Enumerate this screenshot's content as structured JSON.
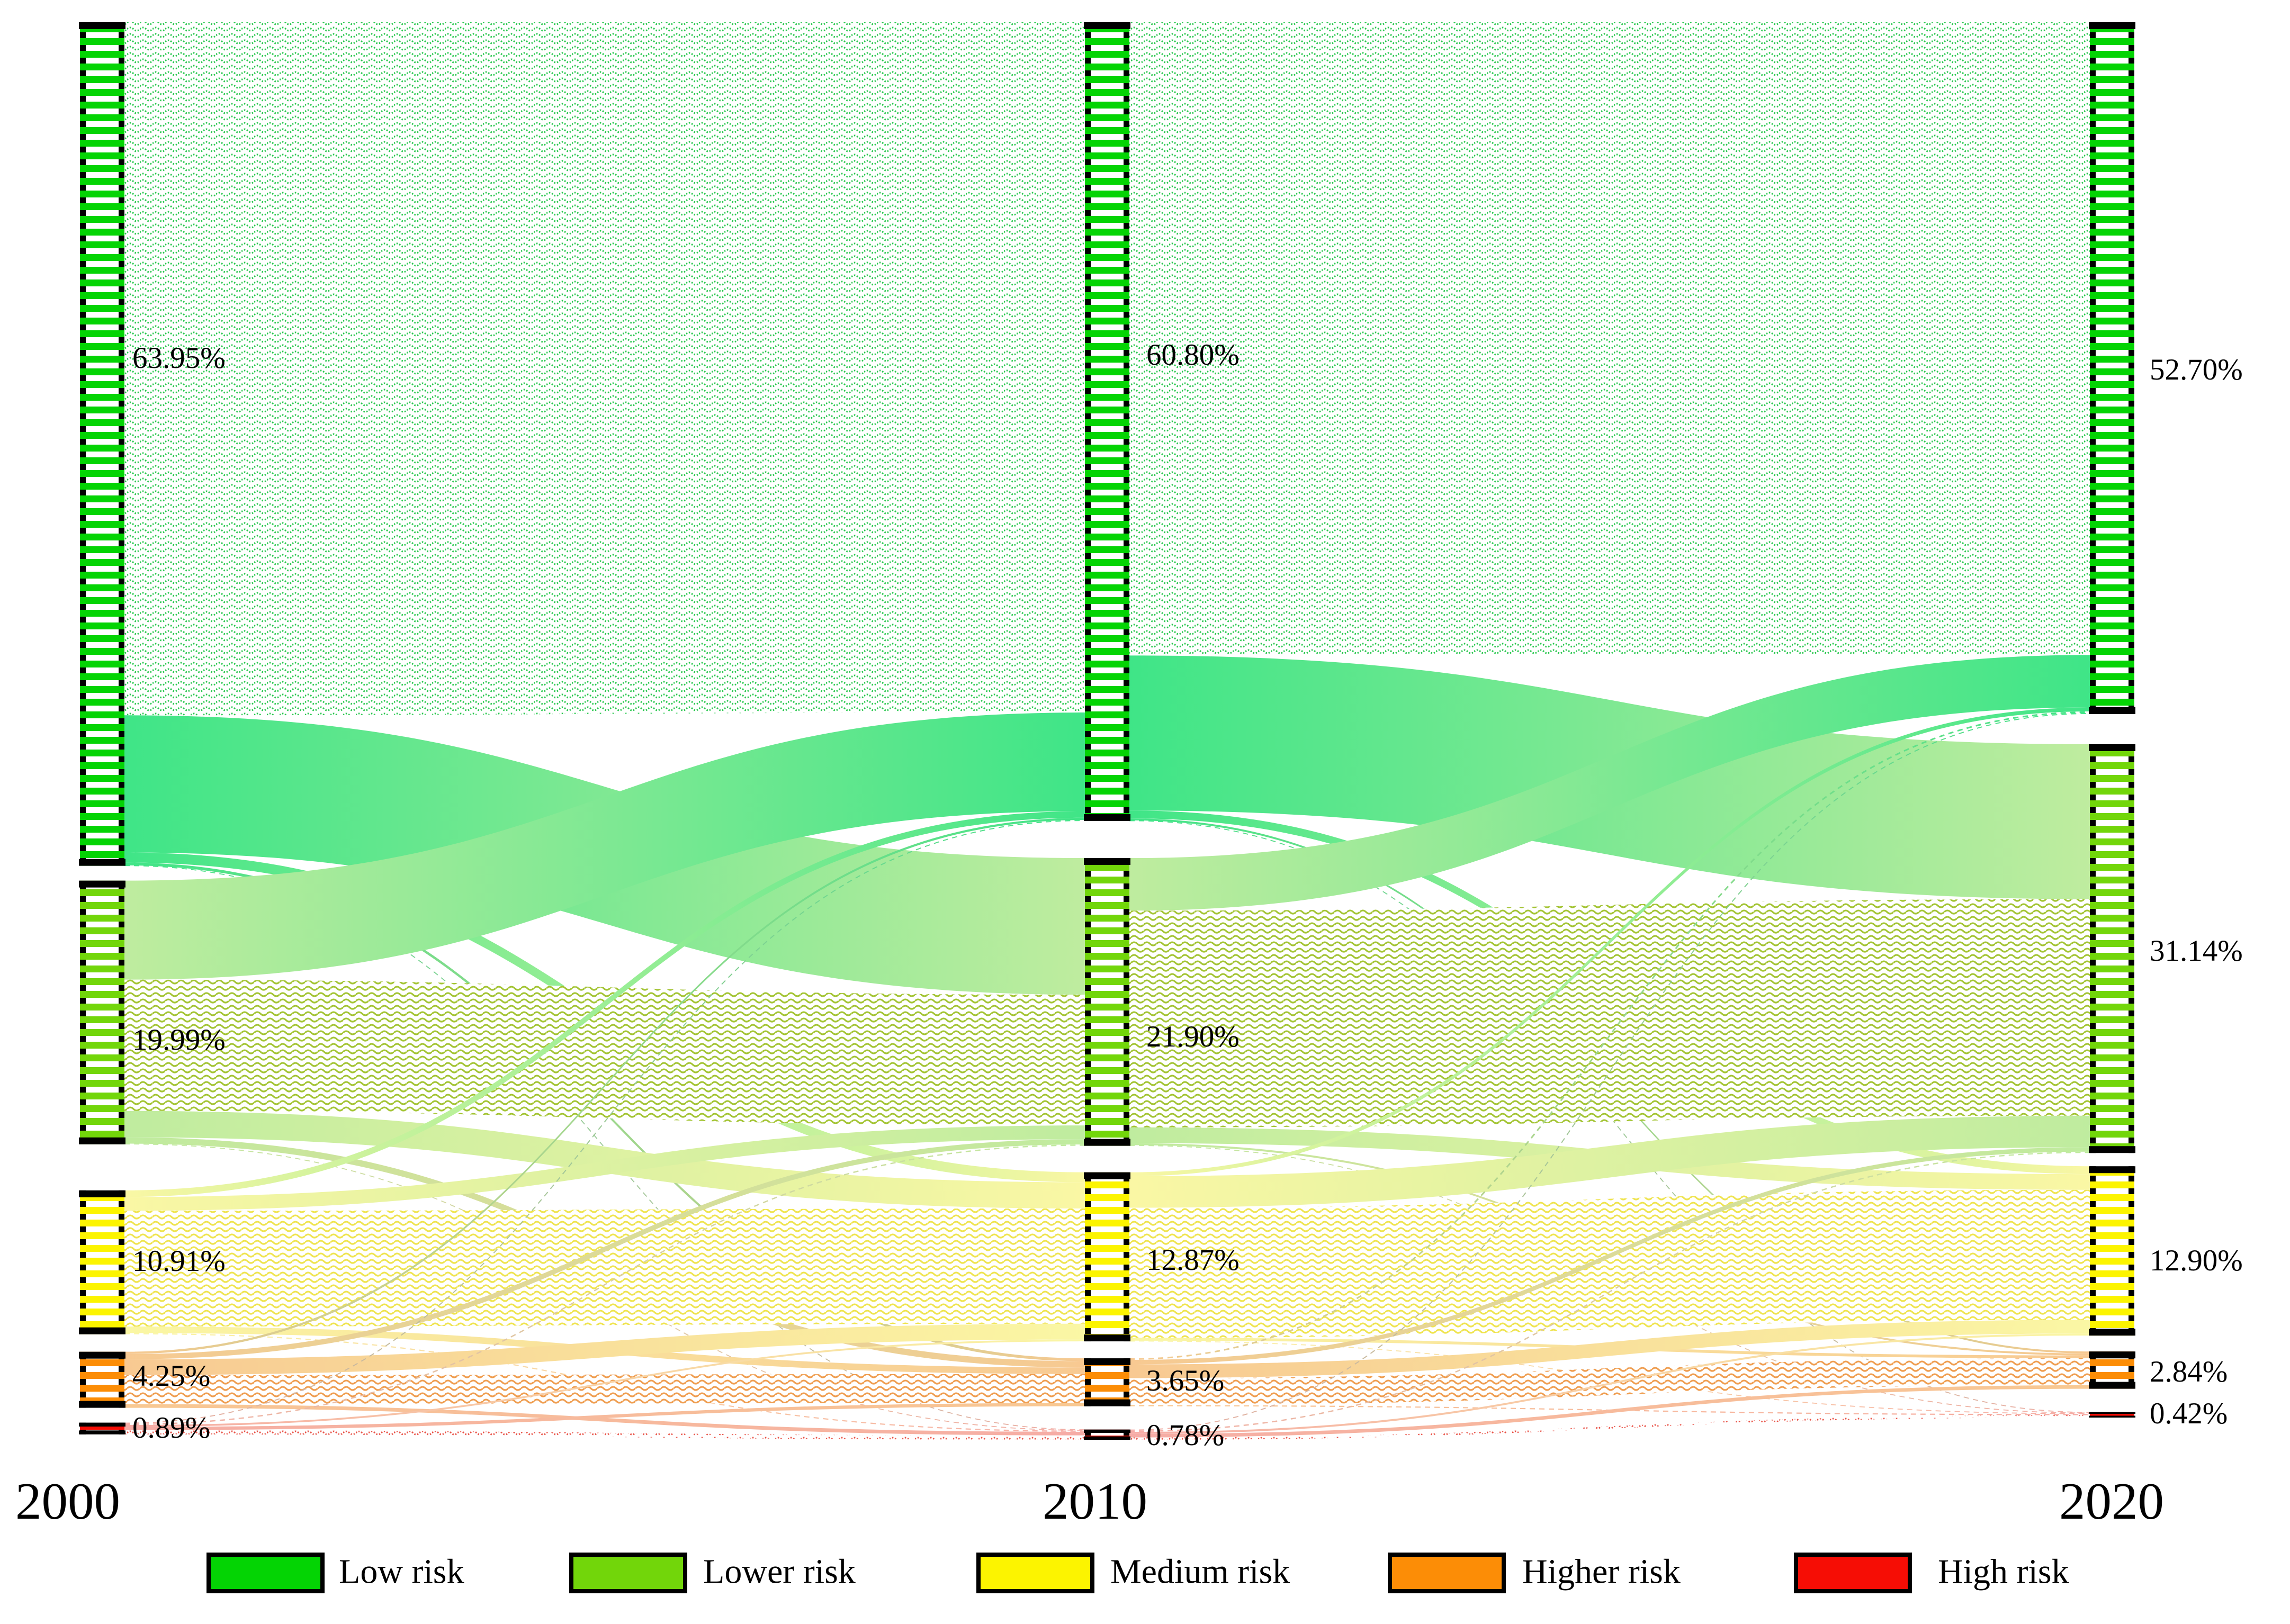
{
  "chart_data": {
    "type": "sankey",
    "title": "",
    "years": [
      "2000",
      "2010",
      "2020"
    ],
    "categories": [
      "Low risk",
      "Lower risk",
      "Medium risk",
      "Higher risk",
      "High risk"
    ],
    "category_colors": [
      "#04D404",
      "#72D60A",
      "#FCF400",
      "#FC8D06",
      "#F60D05"
    ],
    "flow_colors": [
      "#3FE587",
      "#BFEC9F",
      "#FAF7A4",
      "#F8C992",
      "#F6ACA6"
    ],
    "hatch_colors": [
      "#2BC850",
      "#A3C433",
      "#EFE44F",
      "#EF9D4F",
      "#E9564B"
    ],
    "columns": [
      {
        "year": "2000",
        "values": [
          63.95,
          19.99,
          10.91,
          4.25,
          0.89
        ],
        "labels": [
          "63.95%",
          "19.99%",
          "10.91%",
          "4.25%",
          "0.89%"
        ]
      },
      {
        "year": "2010",
        "values": [
          60.8,
          21.9,
          12.87,
          3.65,
          0.78
        ],
        "labels": [
          "60.80%",
          "21.90%",
          "12.87%",
          "3.65%",
          "0.78%"
        ]
      },
      {
        "year": "2020",
        "values": [
          52.7,
          31.14,
          12.9,
          2.84,
          0.42
        ],
        "labels": [
          "52.70%",
          "31.14%",
          "12.90%",
          "2.84%",
          "0.42%"
        ]
      }
    ],
    "links": [
      {
        "from": "2000",
        "to": "2010",
        "estimated": true,
        "matrix": [
          [
            52.54,
            10.4,
            0.76,
            0.22,
            0.03
          ],
          [
            7.51,
            9.95,
            2.0,
            0.48,
            0.05
          ],
          [
            0.5,
            1.05,
            8.77,
            0.5,
            0.09
          ],
          [
            0.17,
            0.4,
            1.2,
            2.2,
            0.28
          ],
          [
            0.08,
            0.1,
            0.14,
            0.25,
            0.32
          ]
        ]
      },
      {
        "from": "2010",
        "to": "2020",
        "estimated": true,
        "matrix": [
          [
            48.2,
            11.8,
            0.6,
            0.15,
            0.05
          ],
          [
            4.0,
            16.5,
            1.2,
            0.15,
            0.05
          ],
          [
            0.3,
            2.4,
            9.9,
            0.22,
            0.05
          ],
          [
            0.12,
            0.34,
            1.05,
            2.05,
            0.09
          ],
          [
            0.08,
            0.1,
            0.15,
            0.27,
            0.18
          ]
        ]
      }
    ],
    "legend": [
      {
        "label": "Low risk",
        "color": "#04D404"
      },
      {
        "label": "Lower risk",
        "color": "#72D60A"
      },
      {
        "label": "Medium risk",
        "color": "#FCF400"
      },
      {
        "label": "Higher risk",
        "color": "#FC8D06"
      },
      {
        "label": "High risk",
        "color": "#F60D05"
      }
    ]
  }
}
